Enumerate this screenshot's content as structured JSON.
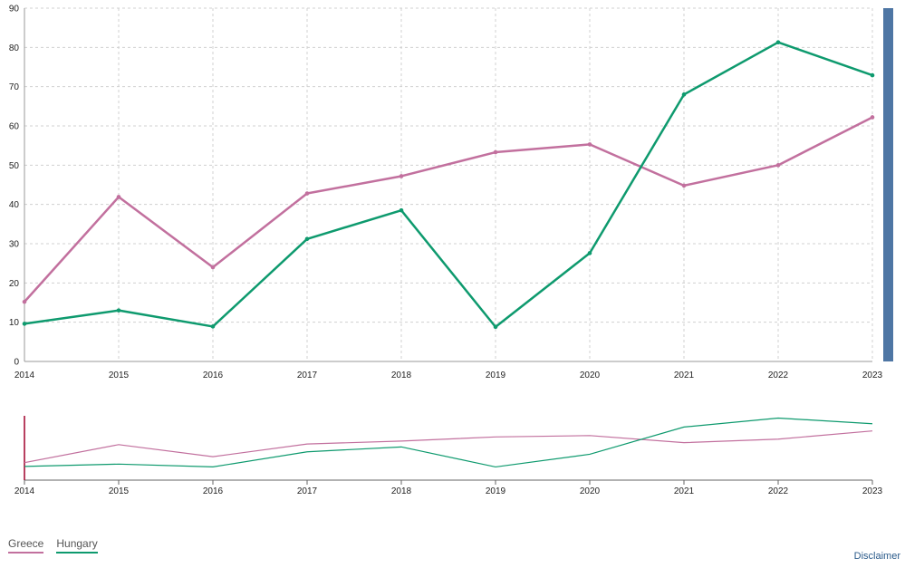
{
  "chart_data": {
    "type": "line",
    "x": [
      "2014",
      "2015",
      "2016",
      "2017",
      "2018",
      "2019",
      "2020",
      "2021",
      "2022",
      "2023"
    ],
    "series": [
      {
        "name": "Greece",
        "color": "#c2709e",
        "values": [
          15.2,
          41.9,
          24.0,
          42.8,
          47.2,
          53.3,
          55.3,
          44.8,
          50.0,
          62.2
        ]
      },
      {
        "name": "Hungary",
        "color": "#0e9a6e",
        "values": [
          9.6,
          13.0,
          8.9,
          31.2,
          38.5,
          8.8,
          27.6,
          68.0,
          81.3,
          72.9
        ]
      }
    ],
    "ylim": [
      0,
      90
    ],
    "yticks": [
      0,
      10,
      20,
      30,
      40,
      50,
      60,
      70,
      80,
      90
    ],
    "grid": true,
    "navigator": true,
    "scrollbar_color": "#4e76a4",
    "legend_position": "bottom-left"
  },
  "legend": {
    "items": [
      "Greece",
      "Hungary"
    ]
  },
  "footer": {
    "disclaimer": "Disclaimer"
  }
}
